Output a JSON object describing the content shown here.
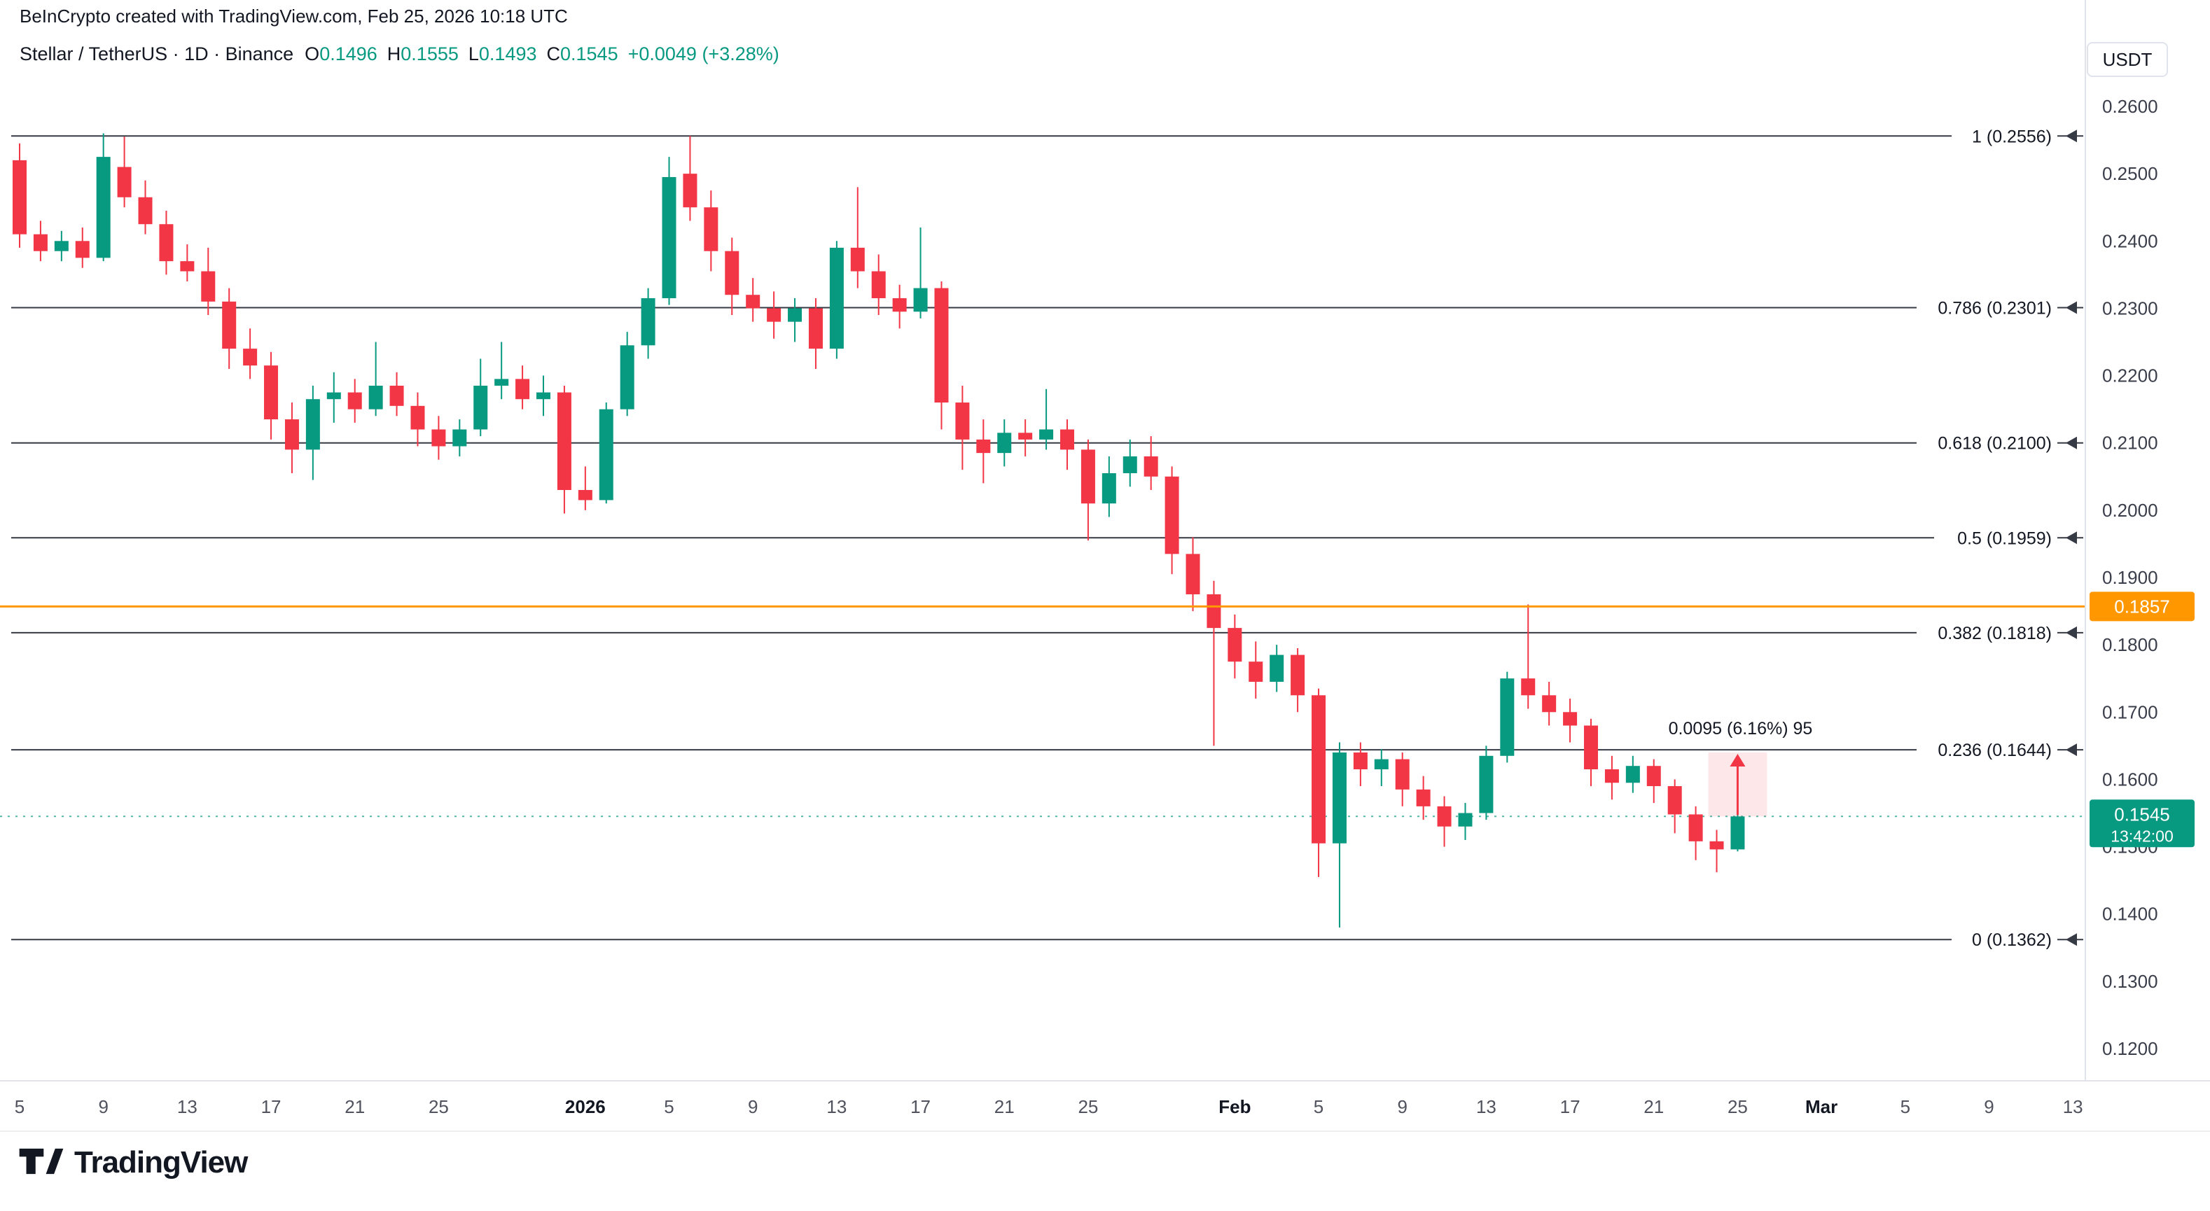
{
  "attribution": "BeInCrypto created with TradingView.com, Feb 25, 2026 10:18 UTC",
  "header": {
    "symbol_title": "Stellar / TetherUS · 1D · Binance",
    "ohlc": {
      "o_label": "O",
      "o": "0.1496",
      "h_label": "H",
      "h": "0.1555",
      "l_label": "L",
      "l": "0.1493",
      "c_label": "C",
      "c": "0.1545",
      "change": "+0.0049 (+3.28%)"
    },
    "currency_button": "USDT"
  },
  "footer": {
    "logo_text": "TradingView"
  },
  "chart_data": {
    "type": "candlestick",
    "symbol": "Stellar / TetherUS",
    "timeframe": "1D",
    "exchange": "Binance",
    "colors": {
      "up": "#089981",
      "down": "#f23645",
      "axis_text": "#3a3e4a",
      "fib_line": "#363a45"
    },
    "price_axis": {
      "min": 0.12,
      "max": 0.26,
      "tick_step": 0.01,
      "ticks": [
        "0.2600",
        "0.2500",
        "0.2400",
        "0.2300",
        "0.2200",
        "0.2100",
        "0.2000",
        "0.1900",
        "0.1800",
        "0.1700",
        "0.1600",
        "0.1500",
        "0.1400",
        "0.1300",
        "0.1200"
      ]
    },
    "time_axis": {
      "start_date": "2025-12-05",
      "ticks": [
        {
          "d": 0,
          "label": "5"
        },
        {
          "d": 4,
          "label": "9"
        },
        {
          "d": 8,
          "label": "13"
        },
        {
          "d": 12,
          "label": "17"
        },
        {
          "d": 16,
          "label": "21"
        },
        {
          "d": 20,
          "label": "25"
        },
        {
          "d": 27,
          "label": "2026",
          "bold": true
        },
        {
          "d": 31,
          "label": "5"
        },
        {
          "d": 35,
          "label": "9"
        },
        {
          "d": 39,
          "label": "13"
        },
        {
          "d": 43,
          "label": "17"
        },
        {
          "d": 47,
          "label": "21"
        },
        {
          "d": 51,
          "label": "25"
        },
        {
          "d": 58,
          "label": "Feb",
          "bold": true
        },
        {
          "d": 62,
          "label": "5"
        },
        {
          "d": 66,
          "label": "9"
        },
        {
          "d": 70,
          "label": "13"
        },
        {
          "d": 74,
          "label": "17"
        },
        {
          "d": 78,
          "label": "21"
        },
        {
          "d": 82,
          "label": "25"
        },
        {
          "d": 86,
          "label": "Mar",
          "bold": true
        },
        {
          "d": 90,
          "label": "5"
        },
        {
          "d": 94,
          "label": "9"
        },
        {
          "d": 98,
          "label": "13"
        }
      ]
    },
    "fib_levels": [
      {
        "label": "1 (0.2556)",
        "price": 0.2556
      },
      {
        "label": "0.786 (0.2301)",
        "price": 0.2301
      },
      {
        "label": "0.618 (0.2100)",
        "price": 0.21
      },
      {
        "label": "0.5 (0.1959)",
        "price": 0.1959
      },
      {
        "label": "0.382 (0.1818)",
        "price": 0.1818
      },
      {
        "label": "0.236 (0.1644)",
        "price": 0.1644
      },
      {
        "label": "0 (0.1362)",
        "price": 0.1362
      }
    ],
    "horizontal_line": {
      "price": 0.1857,
      "label": "0.1857",
      "color": "#ff9800"
    },
    "last_price": {
      "price": 0.1545,
      "label": "0.1545",
      "countdown": "13:42:00",
      "color": "#089981"
    },
    "measurement": {
      "label": "0.0095 (6.16%) 95",
      "from_price": 0.1545,
      "to_price": 0.164,
      "from_day": 81,
      "to_day": 83
    },
    "candles": [
      [
        0.252,
        0.2545,
        0.239,
        0.241
      ],
      [
        0.241,
        0.243,
        0.237,
        0.2385
      ],
      [
        0.2385,
        0.2415,
        0.237,
        0.24
      ],
      [
        0.24,
        0.242,
        0.236,
        0.2375
      ],
      [
        0.2375,
        0.256,
        0.237,
        0.2525
      ],
      [
        0.251,
        0.2555,
        0.245,
        0.2465
      ],
      [
        0.2465,
        0.249,
        0.241,
        0.2425
      ],
      [
        0.2425,
        0.2445,
        0.235,
        0.237
      ],
      [
        0.237,
        0.2395,
        0.234,
        0.2355
      ],
      [
        0.2355,
        0.239,
        0.229,
        0.231
      ],
      [
        0.231,
        0.233,
        0.221,
        0.224
      ],
      [
        0.224,
        0.227,
        0.2195,
        0.2215
      ],
      [
        0.2215,
        0.2235,
        0.2105,
        0.2135
      ],
      [
        0.2135,
        0.216,
        0.2055,
        0.209
      ],
      [
        0.209,
        0.2185,
        0.2045,
        0.2165
      ],
      [
        0.2165,
        0.2205,
        0.213,
        0.2175
      ],
      [
        0.2175,
        0.2195,
        0.213,
        0.215
      ],
      [
        0.215,
        0.225,
        0.214,
        0.2185
      ],
      [
        0.2185,
        0.2205,
        0.214,
        0.2155
      ],
      [
        0.2155,
        0.2175,
        0.2095,
        0.212
      ],
      [
        0.212,
        0.214,
        0.2075,
        0.2095
      ],
      [
        0.2095,
        0.2135,
        0.208,
        0.212
      ],
      [
        0.212,
        0.2225,
        0.211,
        0.2185
      ],
      [
        0.2185,
        0.225,
        0.2165,
        0.2195
      ],
      [
        0.2195,
        0.2215,
        0.215,
        0.2165
      ],
      [
        0.2165,
        0.22,
        0.214,
        0.2175
      ],
      [
        0.2175,
        0.2185,
        0.1995,
        0.203
      ],
      [
        0.203,
        0.2065,
        0.2,
        0.2015
      ],
      [
        0.2015,
        0.216,
        0.201,
        0.215
      ],
      [
        0.215,
        0.2265,
        0.214,
        0.2245
      ],
      [
        0.2245,
        0.233,
        0.2225,
        0.2315
      ],
      [
        0.2315,
        0.2525,
        0.2305,
        0.2495
      ],
      [
        0.25,
        0.2556,
        0.243,
        0.245
      ],
      [
        0.245,
        0.2475,
        0.2355,
        0.2385
      ],
      [
        0.2385,
        0.2405,
        0.229,
        0.232
      ],
      [
        0.232,
        0.2345,
        0.228,
        0.23
      ],
      [
        0.23,
        0.2325,
        0.2255,
        0.228
      ],
      [
        0.228,
        0.2315,
        0.225,
        0.23
      ],
      [
        0.23,
        0.2315,
        0.221,
        0.224
      ],
      [
        0.224,
        0.24,
        0.2225,
        0.239
      ],
      [
        0.239,
        0.248,
        0.233,
        0.2355
      ],
      [
        0.2355,
        0.238,
        0.229,
        0.2315
      ],
      [
        0.2315,
        0.2335,
        0.227,
        0.2295
      ],
      [
        0.2295,
        0.242,
        0.2285,
        0.233
      ],
      [
        0.233,
        0.234,
        0.212,
        0.216
      ],
      [
        0.216,
        0.2185,
        0.206,
        0.2105
      ],
      [
        0.2105,
        0.2135,
        0.204,
        0.2085
      ],
      [
        0.2085,
        0.2135,
        0.2065,
        0.2115
      ],
      [
        0.2115,
        0.2135,
        0.208,
        0.2105
      ],
      [
        0.2105,
        0.218,
        0.209,
        0.212
      ],
      [
        0.212,
        0.2135,
        0.206,
        0.209
      ],
      [
        0.209,
        0.2105,
        0.1955,
        0.201
      ],
      [
        0.201,
        0.208,
        0.199,
        0.2055
      ],
      [
        0.2055,
        0.2105,
        0.2035,
        0.208
      ],
      [
        0.208,
        0.211,
        0.203,
        0.205
      ],
      [
        0.205,
        0.2065,
        0.1905,
        0.1935
      ],
      [
        0.1935,
        0.196,
        0.185,
        0.1875
      ],
      [
        0.1875,
        0.1895,
        0.165,
        0.1825
      ],
      [
        0.1825,
        0.1845,
        0.175,
        0.1775
      ],
      [
        0.1775,
        0.1805,
        0.172,
        0.1745
      ],
      [
        0.1745,
        0.18,
        0.173,
        0.1785
      ],
      [
        0.1785,
        0.1795,
        0.17,
        0.1725
      ],
      [
        0.1725,
        0.1735,
        0.1455,
        0.1505
      ],
      [
        0.1505,
        0.1655,
        0.138,
        0.164
      ],
      [
        0.164,
        0.1655,
        0.159,
        0.1615
      ],
      [
        0.1615,
        0.1645,
        0.159,
        0.163
      ],
      [
        0.163,
        0.164,
        0.156,
        0.1585
      ],
      [
        0.1585,
        0.1605,
        0.154,
        0.156
      ],
      [
        0.156,
        0.1575,
        0.15,
        0.153
      ],
      [
        0.153,
        0.1565,
        0.151,
        0.155
      ],
      [
        0.155,
        0.165,
        0.154,
        0.1635
      ],
      [
        0.1635,
        0.176,
        0.1625,
        0.175
      ],
      [
        0.175,
        0.186,
        0.1705,
        0.1725
      ],
      [
        0.1725,
        0.1745,
        0.168,
        0.17
      ],
      [
        0.17,
        0.172,
        0.1655,
        0.168
      ],
      [
        0.168,
        0.169,
        0.159,
        0.1615
      ],
      [
        0.1615,
        0.1635,
        0.157,
        0.1595
      ],
      [
        0.1595,
        0.1635,
        0.158,
        0.162
      ],
      [
        0.162,
        0.163,
        0.1565,
        0.159
      ],
      [
        0.159,
        0.16,
        0.152,
        0.1548
      ],
      [
        0.1548,
        0.156,
        0.148,
        0.1508
      ],
      [
        0.1508,
        0.1525,
        0.1462,
        0.1496
      ],
      [
        0.1496,
        0.1555,
        0.1493,
        0.1545
      ]
    ]
  }
}
